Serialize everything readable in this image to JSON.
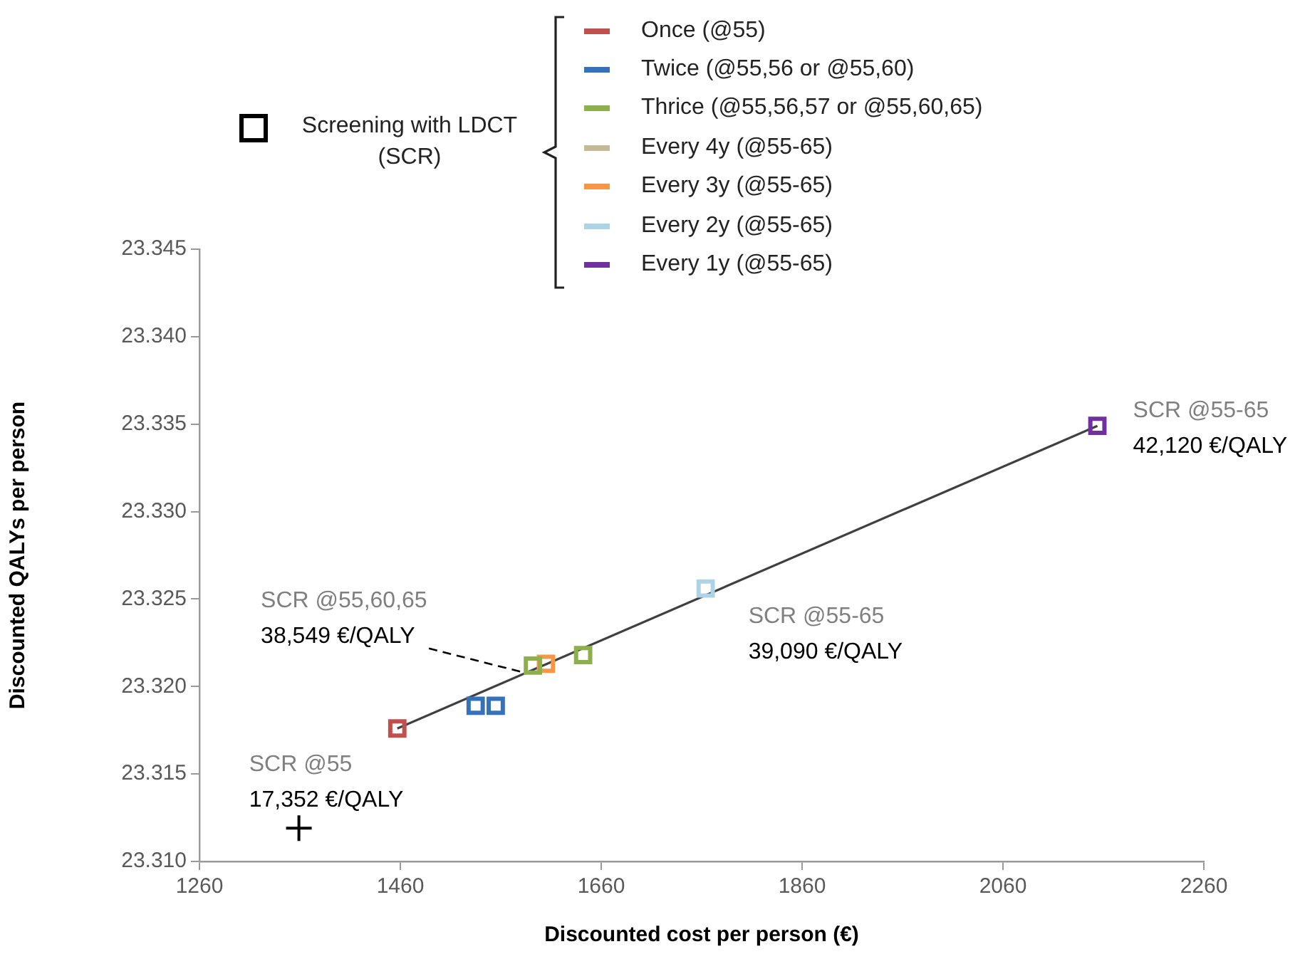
{
  "chart_data": {
    "type": "scatter",
    "xlabel": "Discounted cost per person (€)",
    "ylabel": "Discounted QALYs per person",
    "legend_title": "Screening with LDCT (SCR)",
    "legend": "top",
    "marker": "square",
    "xlim": [
      1260,
      2260
    ],
    "xticks": [
      1260,
      1460,
      1660,
      1860,
      2060,
      2260
    ],
    "ylim": [
      23.31,
      23.345
    ],
    "yticks": [
      {
        "value": 23.31,
        "label": "23.310"
      },
      {
        "value": 23.315,
        "label": "23.315"
      },
      {
        "value": 23.32,
        "label": "23.320"
      },
      {
        "value": 23.325,
        "label": "23.325"
      },
      {
        "value": 23.33,
        "label": "23.330"
      },
      {
        "value": 23.335,
        "label": "23.335"
      },
      {
        "value": 23.34,
        "label": "23.340"
      },
      {
        "value": 23.345,
        "label": "23.345"
      }
    ],
    "grid": false,
    "series": [
      {
        "type": "line",
        "color": "#404040",
        "marker": "none",
        "x": [
          1457,
          2154
        ],
        "values": [
          23.3176,
          23.3349
        ]
      },
      {
        "name": "Once (@55)",
        "color": "#c0504d",
        "x": [
          1457
        ],
        "values": [
          23.3176
        ]
      },
      {
        "name": "Twice (@55,56 or @55,60)",
        "color": "#3672b9",
        "x": [
          1535,
          1555
        ],
        "values": [
          23.3189,
          23.3189
        ]
      },
      {
        "name": "Thrice (@55,56,57 or @55,60,65)",
        "color": "#8db04c",
        "x": [
          1592,
          1642
        ],
        "values": [
          23.3212,
          23.3218
        ]
      },
      {
        "name": "Every 4y (@55-65)",
        "color": "#c4b996"
      },
      {
        "name": "Every 3y (@55-65)",
        "color": "#f79646",
        "x": [
          1605
        ],
        "values": [
          23.3213
        ]
      },
      {
        "name": "Every 2y (@55-65)",
        "color": "#add4e6",
        "x": [
          1764
        ],
        "values": [
          23.3256
        ]
      },
      {
        "name": "Every 1y (@55-65)",
        "color": "#7030a0",
        "x": [
          2154
        ],
        "values": [
          23.3349
        ]
      },
      {
        "type": "scatter",
        "color": "#000000",
        "marker": "cross",
        "x": [
          1359
        ],
        "values": [
          23.3119
        ]
      }
    ],
    "annotations": [
      {
        "text": "SCR @55\n17,352 €/QALY",
        "x": 1457,
        "y": 23.3176
      },
      {
        "text": "SCR @55,60,65\n38,549 €/QALY",
        "x": 1592,
        "y": 23.3212
      },
      {
        "text": "SCR @55-65\n39,090 €/QALY",
        "x": 1764,
        "y": 23.3256
      },
      {
        "text": "SCR @55-65\n42,120 €/QALY",
        "x": 2154,
        "y": 23.3349
      }
    ]
  }
}
